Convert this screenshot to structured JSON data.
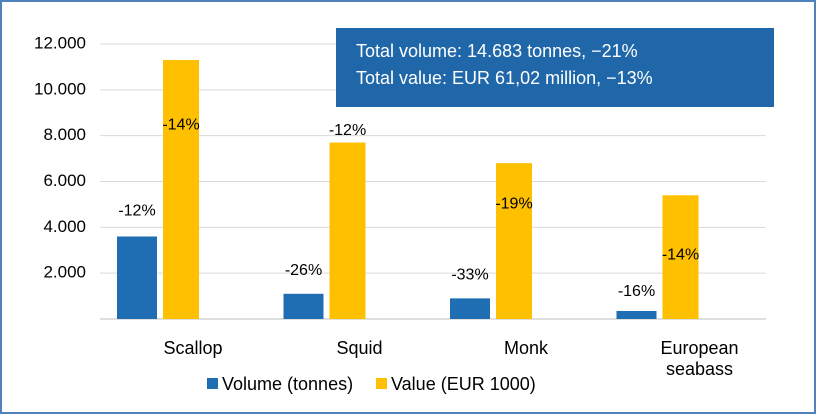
{
  "chart_data": {
    "type": "bar",
    "categories": [
      "Scallop",
      "Squid",
      "Monk",
      "European seabass"
    ],
    "series": [
      {
        "name": "Volume (tonnes)",
        "color": "#1f6db3",
        "values": [
          3600,
          1100,
          900,
          350
        ],
        "value_labels": [
          "-12%",
          "-26%",
          "-33%",
          "-16%"
        ]
      },
      {
        "name": "Value (EUR 1000)",
        "color": "#ffc000",
        "values": [
          11300,
          7700,
          6800,
          5400
        ],
        "value_labels": [
          "-14%",
          "-12%",
          "-19%",
          "-14%"
        ]
      }
    ],
    "ylim": [
      0,
      12000
    ],
    "yticks": [
      {
        "value": 2000,
        "label": "2.000"
      },
      {
        "value": 4000,
        "label": "4.000"
      },
      {
        "value": 6000,
        "label": "6.000"
      },
      {
        "value": 8000,
        "label": "8.000"
      },
      {
        "value": 10000,
        "label": "10.000"
      },
      {
        "value": 12000,
        "label": "12.000"
      }
    ],
    "grid": true,
    "annotations": [
      "Total volume: 14.683 tonnes, −21%",
      "Total value: EUR 61,02 million, −13%"
    ],
    "legend": "bottom"
  }
}
